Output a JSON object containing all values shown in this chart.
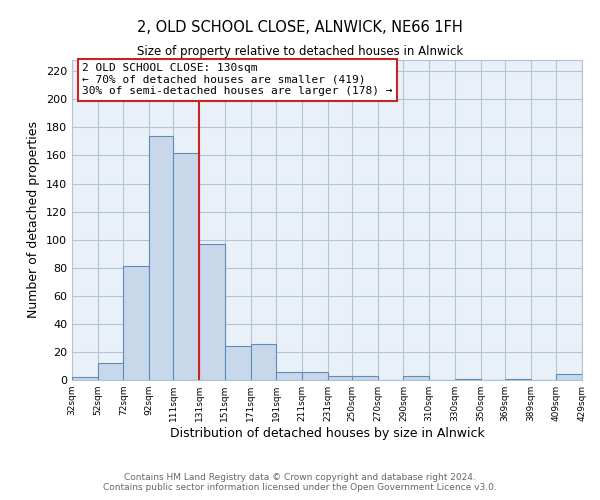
{
  "title": "2, OLD SCHOOL CLOSE, ALNWICK, NE66 1FH",
  "subtitle": "Size of property relative to detached houses in Alnwick",
  "xlabel": "Distribution of detached houses by size in Alnwick",
  "ylabel": "Number of detached properties",
  "bar_color": "#c8d8ea",
  "bar_edge_color": "#5b8db8",
  "grid_color": "#b0c4d8",
  "background_color": "#eaf0f8",
  "annotation_box_color": "#ffffff",
  "annotation_box_edge": "#cc2222",
  "vline_color": "#cc2222",
  "vline_x": 131,
  "annotation_title": "2 OLD SCHOOL CLOSE: 130sqm",
  "annotation_line1": "← 70% of detached houses are smaller (419)",
  "annotation_line2": "30% of semi-detached houses are larger (178) →",
  "footer_line1": "Contains HM Land Registry data © Crown copyright and database right 2024.",
  "footer_line2": "Contains public sector information licensed under the Open Government Licence v3.0.",
  "bin_edges": [
    32,
    52,
    72,
    92,
    111,
    131,
    151,
    171,
    191,
    211,
    231,
    250,
    270,
    290,
    310,
    330,
    350,
    369,
    389,
    409,
    429
  ],
  "bin_counts": [
    2,
    12,
    81,
    174,
    162,
    97,
    24,
    26,
    6,
    6,
    3,
    3,
    0,
    3,
    0,
    1,
    0,
    1,
    0,
    4
  ],
  "tick_labels": [
    "32sqm",
    "52sqm",
    "72sqm",
    "92sqm",
    "111sqm",
    "131sqm",
    "151sqm",
    "171sqm",
    "191sqm",
    "211sqm",
    "231sqm",
    "250sqm",
    "270sqm",
    "290sqm",
    "310sqm",
    "330sqm",
    "350sqm",
    "369sqm",
    "389sqm",
    "409sqm",
    "429sqm"
  ],
  "ylim": [
    0,
    228
  ],
  "yticks": [
    0,
    20,
    40,
    60,
    80,
    100,
    120,
    140,
    160,
    180,
    200,
    220
  ]
}
